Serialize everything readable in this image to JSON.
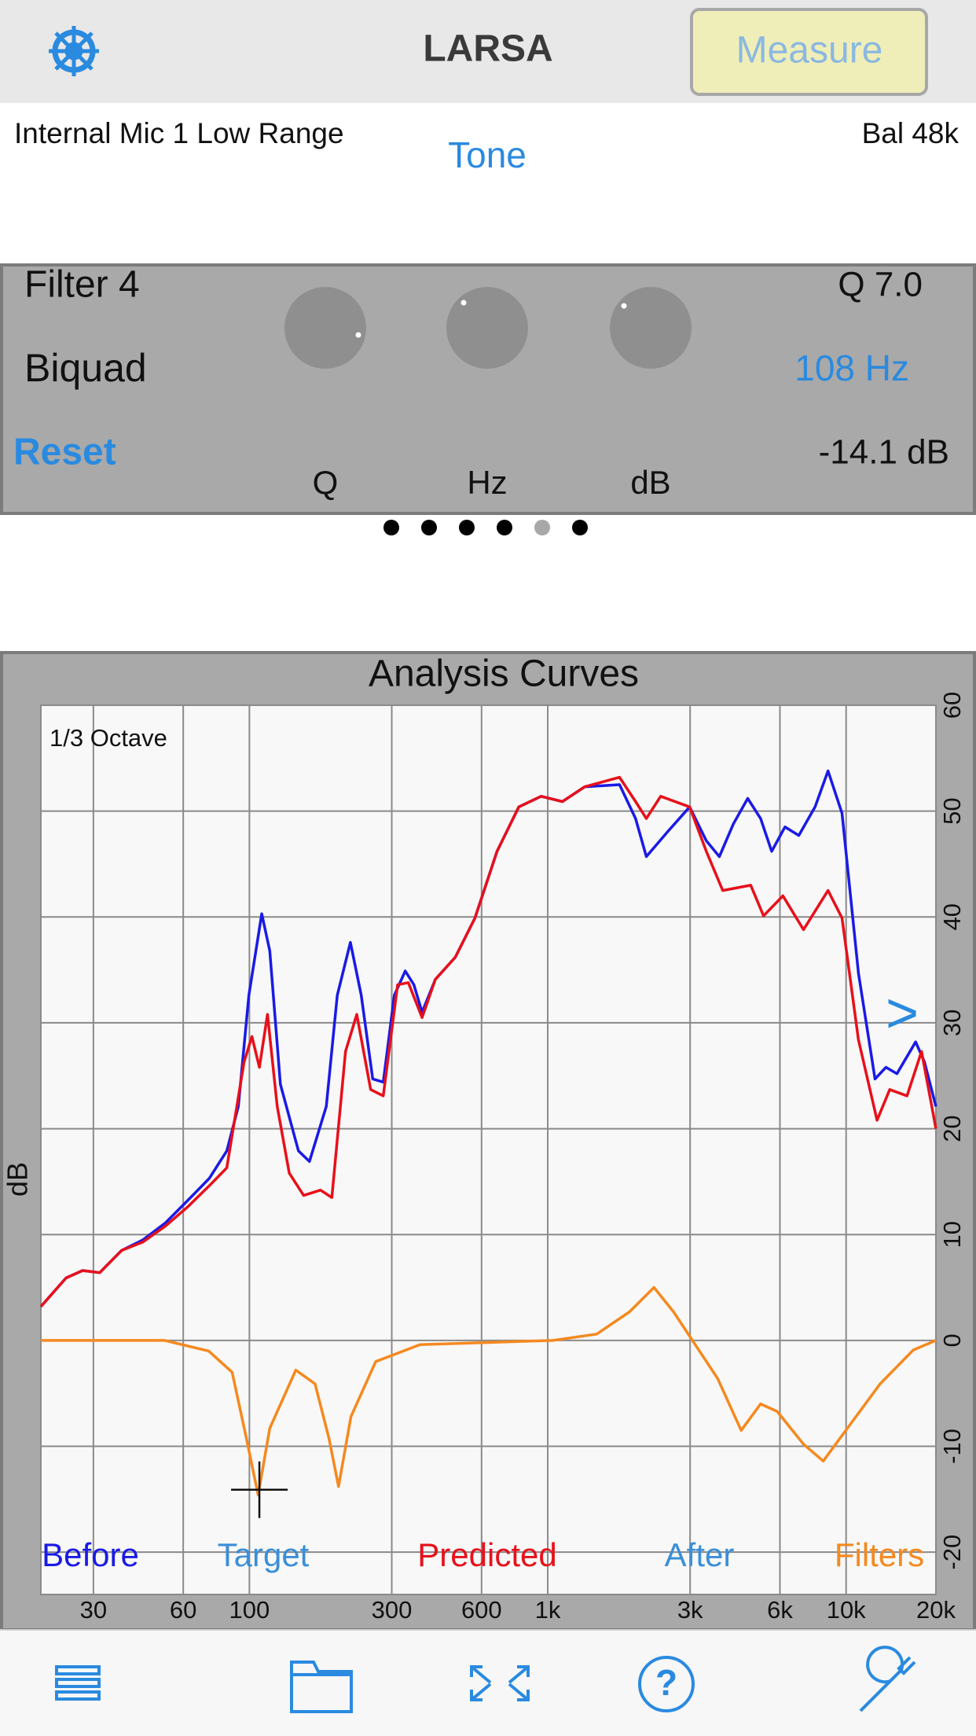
{
  "header": {
    "title": "LARSA",
    "button": "Measure"
  },
  "source": {
    "input": "Internal Mic 1 Low Range",
    "mode": "Tone",
    "rate": "Bal 48k"
  },
  "filter": {
    "name": "Filter 4",
    "kind": "Biquad",
    "reset": "Reset",
    "q": "Q 7.0",
    "freq": "108 Hz",
    "gain": "-14.1 dB",
    "knob_labels": [
      "Q",
      "Hz",
      "dB"
    ]
  },
  "chart_data": {
    "type": "line",
    "title": "Analysis Curves",
    "annotation": "1/3 Octave",
    "scroll_hint": ">",
    "y_label": "dB",
    "xscale": "log",
    "xlim": [
      20,
      20000
    ],
    "ylim": [
      -24,
      60
    ],
    "grid": true,
    "xticks": [
      30,
      60,
      100,
      300,
      600,
      {
        "value": 1000,
        "label": "1k"
      },
      {
        "value": 3000,
        "label": "3k"
      },
      {
        "value": 6000,
        "label": "6k"
      },
      {
        "value": 10000,
        "label": "10k"
      },
      {
        "value": 20000,
        "label": "20k"
      }
    ],
    "yticks": [
      60,
      50,
      40,
      30,
      20,
      10,
      0,
      -10,
      -20
    ],
    "cursor": {
      "x": 108,
      "y": -14.1
    },
    "series": [
      {
        "name": "Before",
        "color": "#1a1ae6",
        "x": [
          20,
          24.3,
          27.6,
          31.5,
          37.3,
          44,
          52.3,
          62,
          73.3,
          84,
          91.8,
          99.6,
          110,
          117,
          127,
          146,
          159,
          181,
          197,
          218,
          237,
          259,
          281,
          306,
          333,
          356,
          379,
          420,
          490,
          570,
          676,
          800,
          950,
          1120,
          1330,
          1740,
          1970,
          2140,
          2530,
          2990,
          3400,
          3760,
          4190,
          4680,
          5170,
          5630,
          6240,
          6940,
          7870,
          8700,
          9690,
          11000,
          12500,
          13600,
          14800,
          17100,
          18300,
          20000
        ],
        "values": [
          3.2,
          5.9,
          6.6,
          6.4,
          8.5,
          9.5,
          11.1,
          13.2,
          15.3,
          17.9,
          22.1,
          32.6,
          40.3,
          36.8,
          24.2,
          17.9,
          16.9,
          22.1,
          32.6,
          37.6,
          32.6,
          24.7,
          24.4,
          32.6,
          34.9,
          33.6,
          31,
          34.1,
          36.2,
          39.9,
          46.2,
          50.4,
          51.4,
          50.9,
          52.3,
          52.5,
          49.3,
          45.7,
          48.1,
          50.4,
          47.2,
          45.7,
          48.8,
          51.2,
          49.3,
          46.2,
          48.5,
          47.7,
          50.4,
          53.8,
          49.8,
          34.7,
          24.7,
          25.8,
          25.2,
          28.2,
          26.3,
          22.1
        ]
      },
      {
        "name": "Target",
        "color": "#3a8fd8",
        "x": [],
        "values": []
      },
      {
        "name": "Predicted",
        "color": "#e8101a",
        "x": [
          20,
          24.3,
          27.6,
          31.5,
          37.3,
          44,
          52.3,
          62,
          73.3,
          84,
          96,
          102,
          108,
          115,
          124,
          136,
          152,
          173,
          189,
          210,
          229,
          255,
          281,
          314,
          341,
          379,
          420,
          490,
          570,
          676,
          800,
          950,
          1120,
          1330,
          1740,
          1970,
          2140,
          2390,
          2990,
          3400,
          3860,
          4790,
          5290,
          6140,
          7200,
          8700,
          9690,
          11000,
          12700,
          14000,
          16000,
          17900,
          20000
        ],
        "values": [
          3.2,
          5.9,
          6.6,
          6.4,
          8.5,
          9.3,
          10.8,
          12.6,
          14.6,
          16.3,
          26.3,
          28.7,
          25.8,
          30.8,
          22.1,
          15.8,
          13.7,
          14.2,
          13.5,
          27.3,
          30.8,
          23.7,
          23.1,
          33.6,
          33.8,
          30.5,
          34.1,
          36.2,
          39.9,
          46.2,
          50.4,
          51.4,
          50.9,
          52.3,
          53.2,
          50.9,
          49.3,
          51.4,
          50.4,
          46.2,
          42.5,
          43,
          40.1,
          42,
          38.8,
          42.5,
          39.9,
          28.4,
          20.8,
          23.7,
          23.1,
          27.3,
          20
        ]
      },
      {
        "name": "After",
        "color": "#3a8fd8",
        "x": [],
        "values": []
      },
      {
        "name": "Filters",
        "color": "#f5891f",
        "x": [
          20,
          52,
          73,
          87.5,
          97.8,
          107,
          117,
          143,
          166,
          185,
          199,
          219,
          265,
          373,
          1040,
          1460,
          1880,
          2270,
          2640,
          2990,
          3710,
          4450,
          5170,
          5870,
          7200,
          8380,
          10100,
          13000,
          16800,
          20000
        ],
        "values": [
          0,
          0,
          -1,
          -3,
          -9.3,
          -14.6,
          -8.3,
          -2.8,
          -4.1,
          -9.3,
          -13.8,
          -7.2,
          -2,
          -0.4,
          0,
          0.6,
          2.7,
          5,
          2.7,
          0.4,
          -3.6,
          -8.5,
          -6,
          -6.7,
          -9.8,
          -11.4,
          -8.3,
          -4.1,
          -0.9,
          0
        ]
      }
    ]
  }
}
